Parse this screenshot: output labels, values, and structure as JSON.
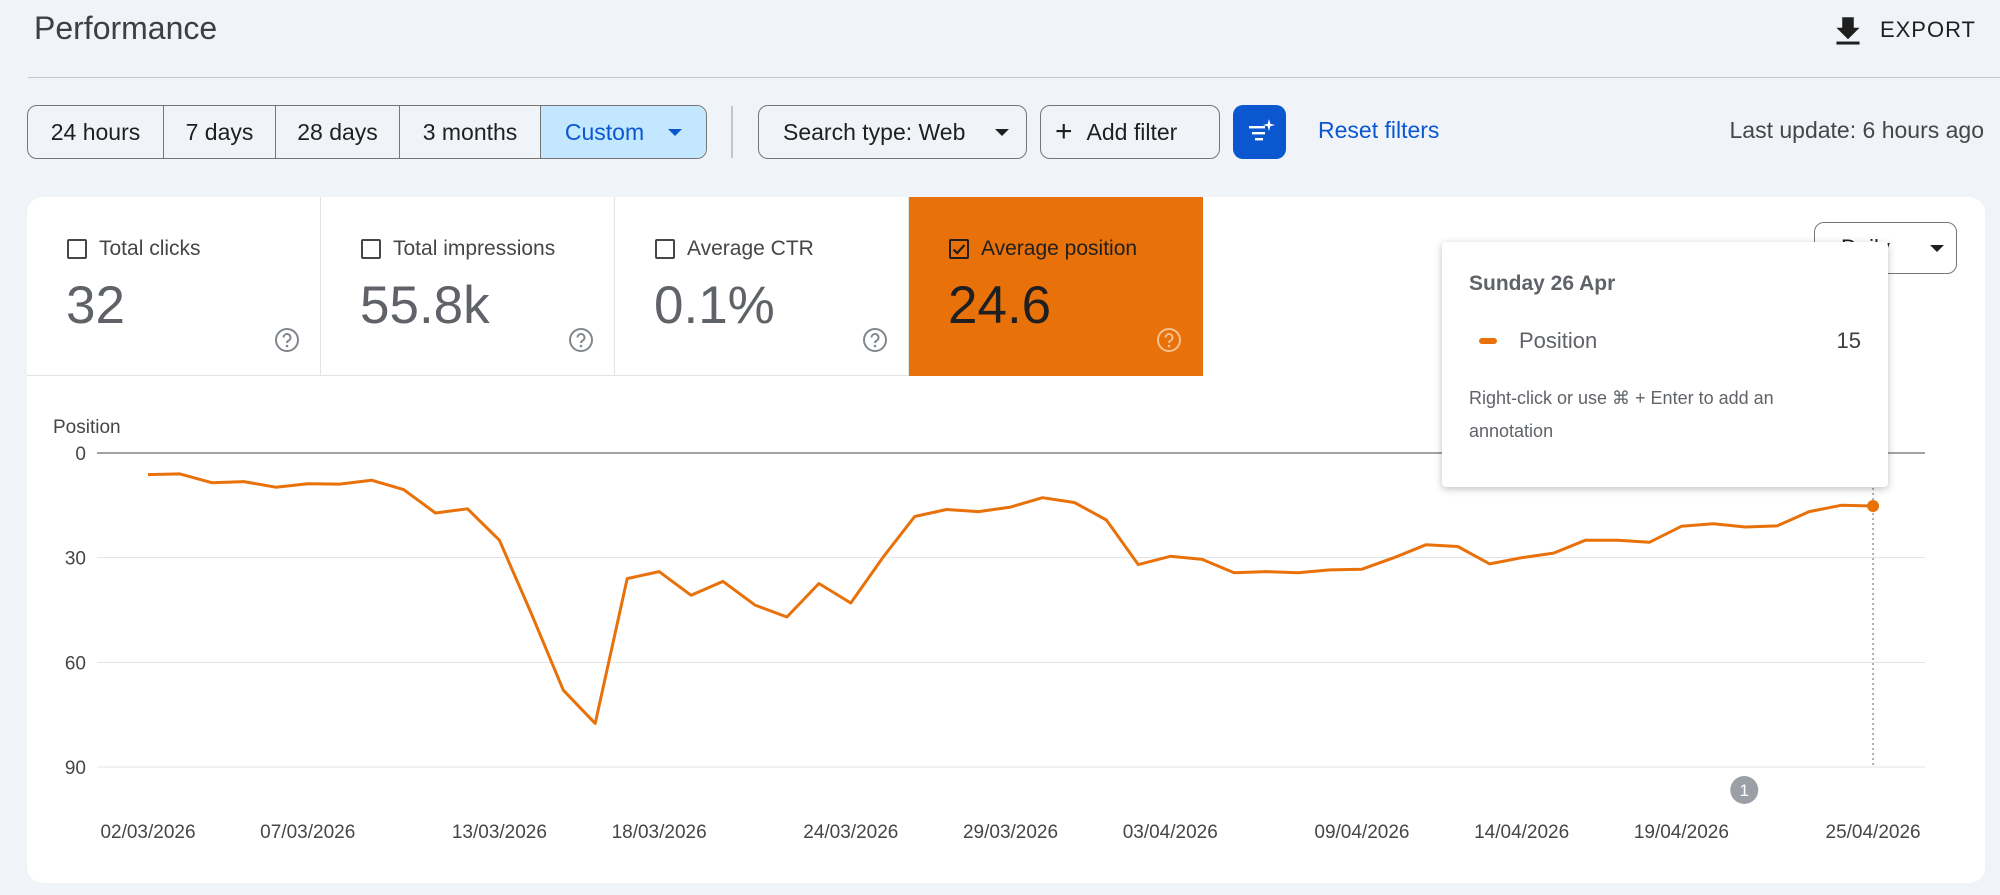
{
  "header": {
    "title": "Performance",
    "export_label": "EXPORT"
  },
  "filters": {
    "ranges": [
      "24 hours",
      "7 days",
      "28 days",
      "3 months",
      "Custom"
    ],
    "active_range": "Custom",
    "search_type": "Search type: Web",
    "add_filter": "Add filter",
    "reset": "Reset filters",
    "last_update": "Last update: 6 hours ago"
  },
  "metrics": [
    {
      "label": "Total clicks",
      "value": "32",
      "checked": false
    },
    {
      "label": "Total impressions",
      "value": "55.8k",
      "checked": false
    },
    {
      "label": "Average CTR",
      "value": "0.1%",
      "checked": false
    },
    {
      "label": "Average position",
      "value": "24.6",
      "checked": true
    }
  ],
  "granularity": "Daily",
  "tooltip": {
    "date": "Sunday 26 Apr",
    "series": "Position",
    "value": "15",
    "hint": "Right-click or use ⌘ + Enter to add an annotation"
  },
  "annotation_marker": "1",
  "colors": {
    "accent": "#e8710a",
    "primary": "#0b57d0",
    "active_bg": "#c2e7ff"
  },
  "chart_data": {
    "type": "line",
    "title": "",
    "ylabel": "Position",
    "y_inverted": true,
    "ylim": [
      0,
      90
    ],
    "y_ticks": [
      0,
      30,
      60,
      90
    ],
    "x_tick_labels": [
      "02/03/2026",
      "07/03/2026",
      "13/03/2026",
      "18/03/2026",
      "24/03/2026",
      "29/03/2026",
      "03/04/2026",
      "09/04/2026",
      "14/04/2026",
      "19/04/2026",
      "25/04/2026"
    ],
    "x_start": "2026-03-02",
    "x_end": "2026-04-26",
    "series": [
      {
        "name": "Position",
        "values": [
          6.2,
          6.0,
          8.5,
          8.2,
          9.8,
          8.8,
          8.9,
          7.8,
          10.5,
          17.2,
          16.0,
          25.0,
          46.0,
          68.0,
          77.5,
          36.0,
          34.0,
          40.8,
          36.8,
          43.6,
          47.0,
          37.4,
          43.0,
          30.0,
          18.2,
          16.2,
          16.8,
          15.5,
          12.8,
          14.2,
          19.2,
          32.0,
          29.6,
          30.5,
          34.3,
          34.0,
          34.3,
          33.5,
          33.3,
          30.0,
          26.3,
          26.8,
          31.8,
          30.0,
          28.7,
          25.0,
          25.0,
          25.6,
          21.0,
          20.3,
          21.2,
          20.9,
          16.8,
          15.0,
          15.2
        ]
      }
    ]
  }
}
